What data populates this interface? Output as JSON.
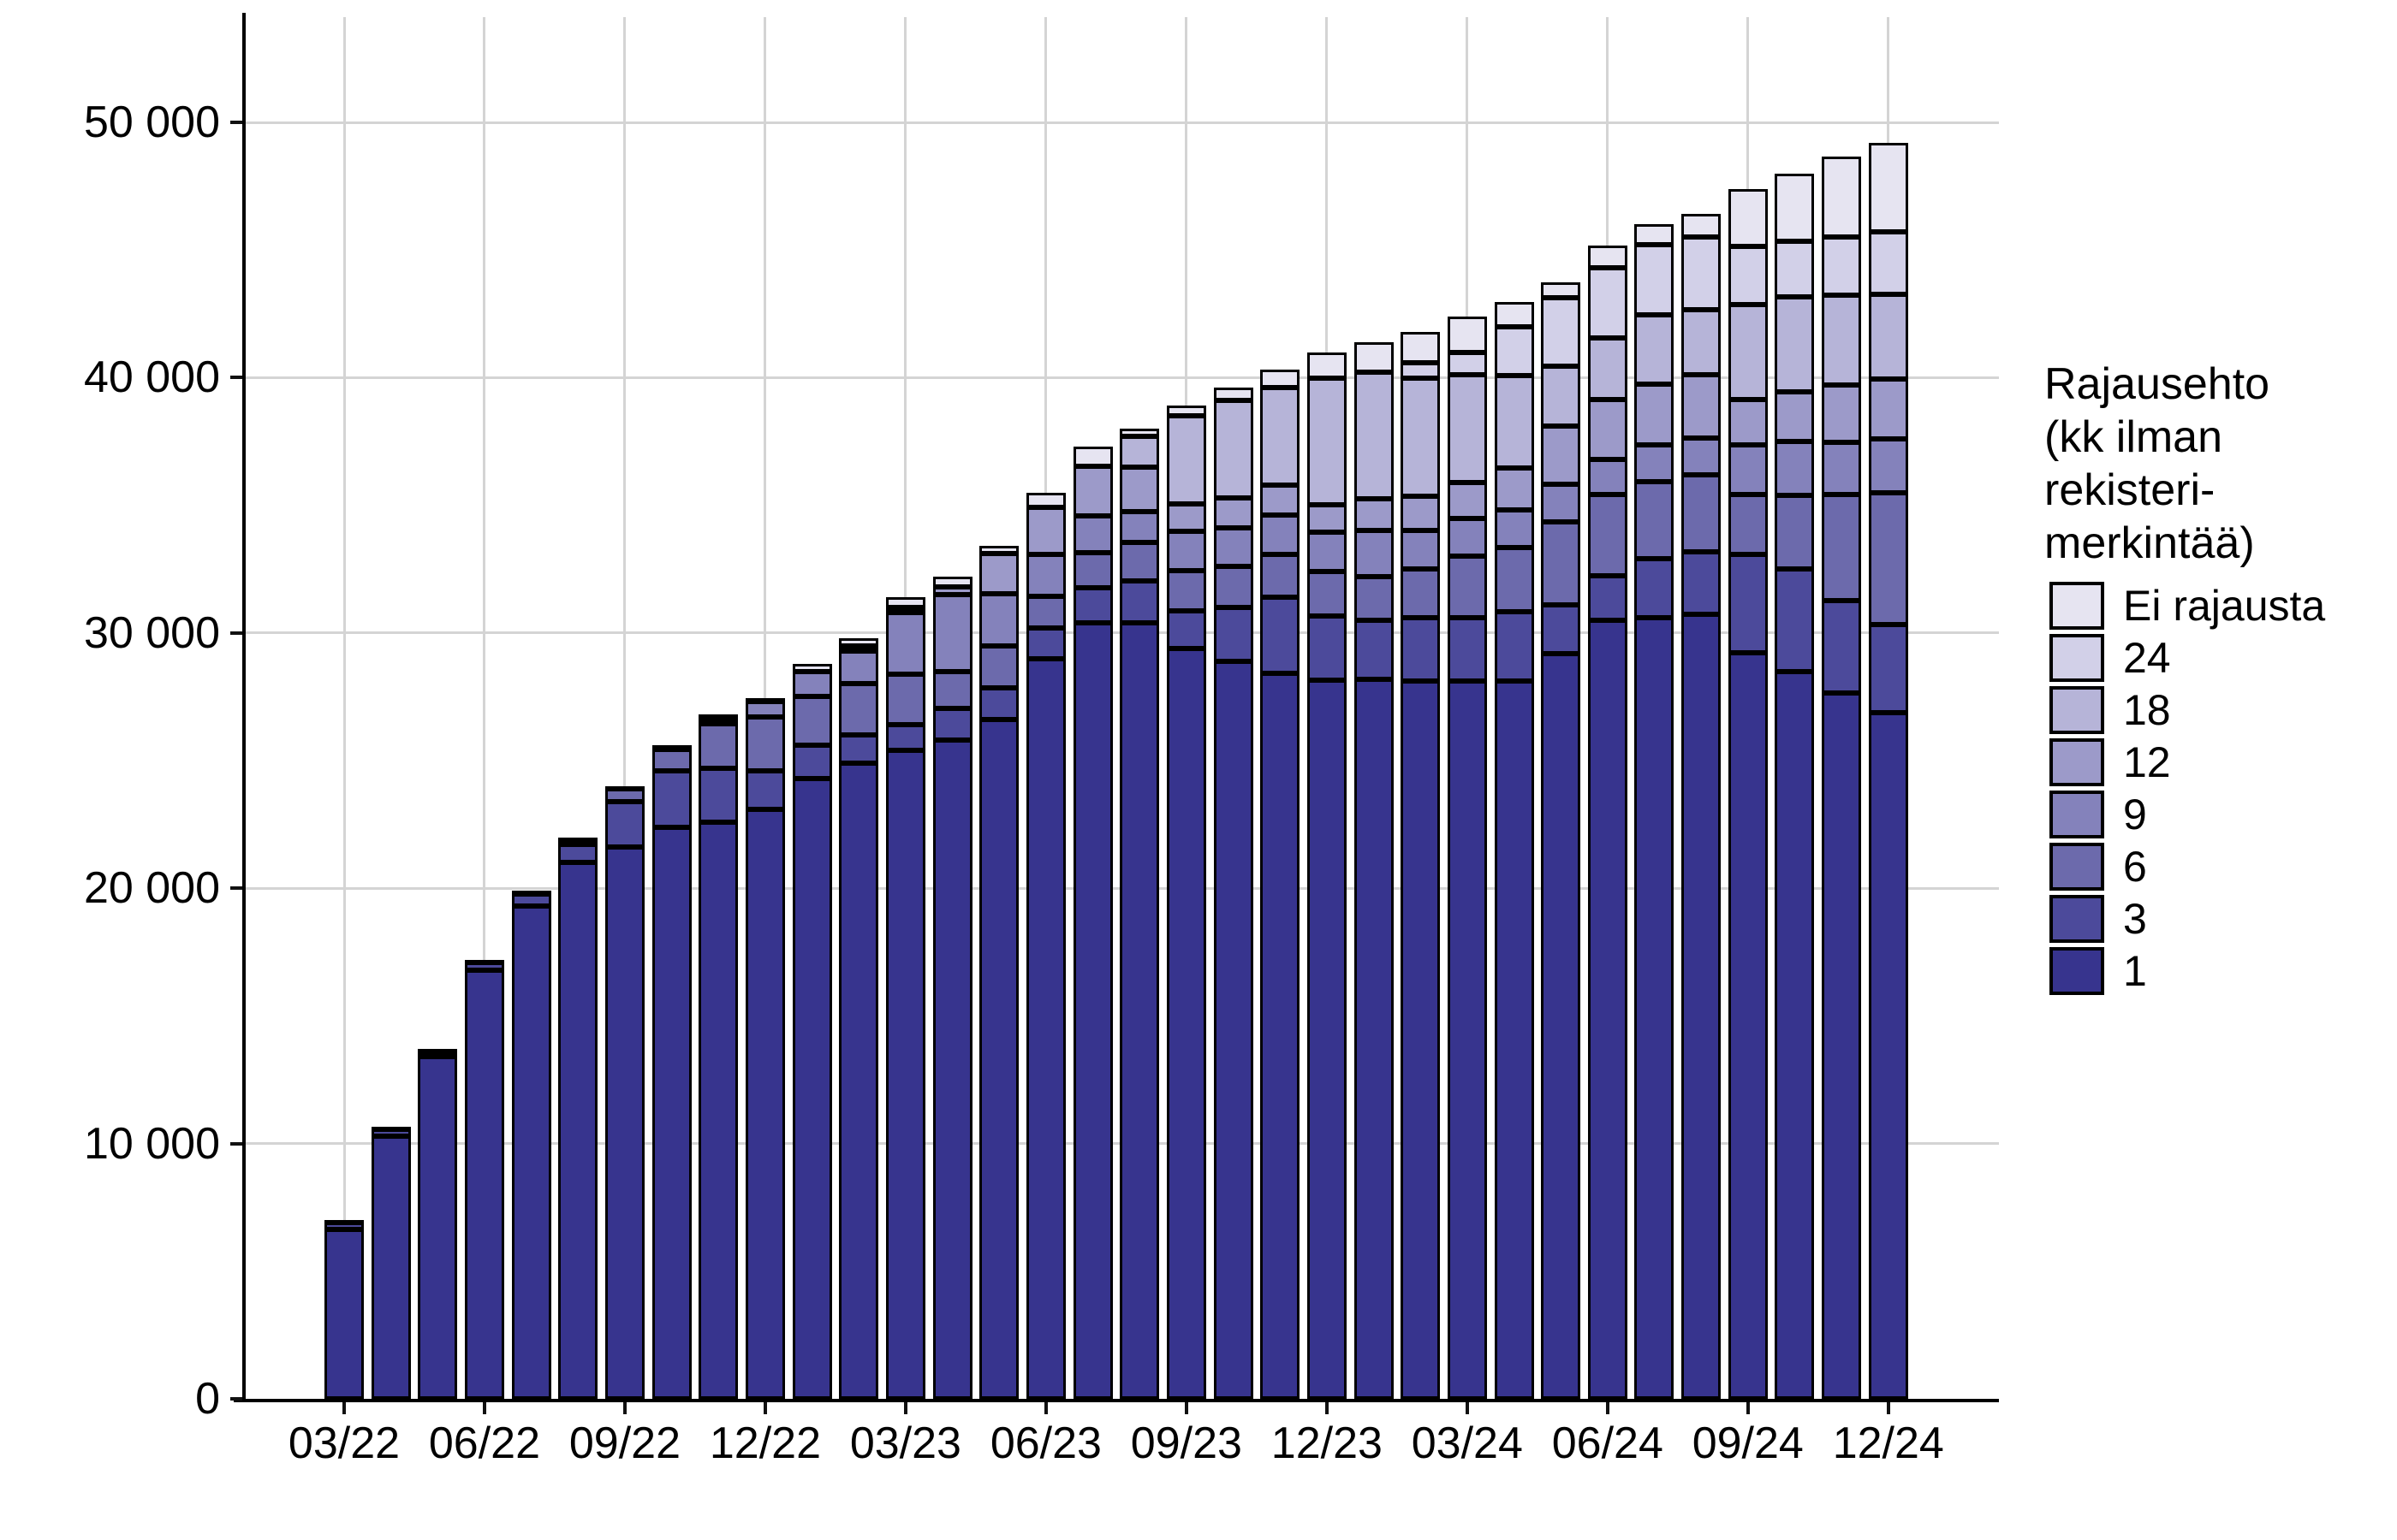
{
  "chart_data": {
    "type": "bar",
    "stacked": true,
    "title": "",
    "xlabel": "",
    "ylabel": "",
    "x": [
      "03/22",
      "04/22",
      "05/22",
      "06/22",
      "07/22",
      "08/22",
      "09/22",
      "10/22",
      "11/22",
      "12/22",
      "01/23",
      "02/23",
      "03/23",
      "04/23",
      "05/23",
      "06/23",
      "07/23",
      "08/23",
      "09/23",
      "10/23",
      "11/23",
      "12/23",
      "01/24",
      "02/24",
      "03/24",
      "04/24",
      "05/24",
      "06/24",
      "07/24",
      "08/24",
      "09/24",
      "10/24",
      "11/24",
      "12/24"
    ],
    "x_tick_labels": [
      "03/22",
      "06/22",
      "09/22",
      "12/22",
      "03/23",
      "06/23",
      "09/23",
      "12/23",
      "03/24",
      "06/24",
      "09/24",
      "12/24"
    ],
    "ylim": [
      0,
      50000
    ],
    "y_ticks": [
      0,
      10000,
      20000,
      30000,
      40000,
      50000
    ],
    "y_tick_labels": [
      "0",
      "10 000",
      "20 000",
      "30 000",
      "40 000",
      "50 000"
    ],
    "grid": true,
    "legend_position": "right",
    "series": [
      {
        "name": "1",
        "color": "#37348E",
        "values": [
          6650,
          10300,
          13400,
          16800,
          19300,
          21000,
          21600,
          22400,
          22600,
          23100,
          24300,
          24900,
          25400,
          25800,
          26600,
          29000,
          30400,
          30390,
          29390,
          28900,
          28430,
          28150,
          28200,
          28100,
          28100,
          28100,
          29200,
          30500,
          30610,
          30720,
          29210,
          28490,
          27650,
          26870
        ]
      },
      {
        "name": "3",
        "color": "#4C4A9B",
        "values": [
          250,
          250,
          200,
          300,
          480,
          700,
          1800,
          2200,
          2100,
          1500,
          1300,
          1100,
          1000,
          1260,
          1260,
          1180,
          1370,
          1660,
          1490,
          2100,
          2970,
          2500,
          2300,
          2500,
          2500,
          2730,
          1900,
          1730,
          2290,
          2460,
          3850,
          4010,
          3630,
          3460
        ]
      },
      {
        "name": "6",
        "color": "#6C6AAC",
        "values": [
          0,
          0,
          0,
          0,
          0,
          180,
          480,
          820,
          1750,
          2100,
          1900,
          2000,
          2000,
          1430,
          1640,
          1250,
          1380,
          1490,
          1550,
          1600,
          1660,
          1750,
          1700,
          1900,
          2400,
          2500,
          3240,
          3180,
          3010,
          3010,
          2360,
          2900,
          4130,
          5170
        ]
      },
      {
        "name": "9",
        "color": "#8482BB",
        "values": [
          0,
          0,
          0,
          0,
          0,
          0,
          0,
          0,
          200,
          600,
          1000,
          1300,
          2400,
          3000,
          2020,
          1640,
          1440,
          1220,
          1550,
          1500,
          1560,
          1560,
          1800,
          1500,
          1500,
          1500,
          1480,
          1400,
          1450,
          1450,
          1950,
          2100,
          2070,
          2090
        ]
      },
      {
        "name": "12",
        "color": "#9C9AC9",
        "values": [
          0,
          0,
          0,
          0,
          0,
          0,
          0,
          0,
          0,
          0,
          0,
          200,
          200,
          310,
          1580,
          1860,
          1940,
          1720,
          1060,
          1200,
          1170,
          1060,
          1250,
          1350,
          1400,
          1620,
          2270,
          2340,
          2400,
          2460,
          1780,
          1930,
          2230,
          2340
        ]
      },
      {
        "name": "18",
        "color": "#B6B4D8",
        "values": [
          0,
          0,
          0,
          0,
          0,
          0,
          0,
          0,
          0,
          0,
          0,
          0,
          0,
          0,
          0,
          0,
          0,
          1220,
          3460,
          3800,
          3810,
          4950,
          4950,
          4640,
          4200,
          3640,
          2345,
          2400,
          2690,
          2570,
          3700,
          3740,
          3515,
          3350
        ]
      },
      {
        "name": "24",
        "color": "#D2D0E8",
        "values": [
          0,
          0,
          0,
          0,
          0,
          0,
          0,
          0,
          0,
          0,
          0,
          0,
          0,
          0,
          0,
          0,
          0,
          0,
          0,
          0,
          0,
          0,
          0,
          600,
          900,
          1900,
          2685,
          2740,
          2750,
          2830,
          2290,
          2180,
          2290,
          2420
        ]
      },
      {
        "name": "Ei rajausta",
        "color": "#E6E4F1",
        "values": [
          100,
          100,
          100,
          100,
          120,
          120,
          120,
          180,
          150,
          150,
          300,
          300,
          400,
          400,
          300,
          570,
          770,
          300,
          400,
          500,
          700,
          1030,
          1200,
          1210,
          1400,
          960,
          610,
          890,
          800,
          900,
          2260,
          2650,
          3135,
          3500
        ]
      }
    ]
  },
  "legend": {
    "title_lines": [
      "Rajausehto",
      "(kk ilman",
      "rekisteri-",
      "merkintää)"
    ],
    "items": [
      {
        "label": "Ei rajausta",
        "color": "#E6E4F1"
      },
      {
        "label": "24",
        "color": "#D2D0E8"
      },
      {
        "label": "18",
        "color": "#B6B4D8"
      },
      {
        "label": "12",
        "color": "#9C9AC9"
      },
      {
        "label": "9",
        "color": "#8482BB"
      },
      {
        "label": "6",
        "color": "#6C6AAC"
      },
      {
        "label": "3",
        "color": "#4C4A9B"
      },
      {
        "label": "1",
        "color": "#37348E"
      }
    ]
  }
}
